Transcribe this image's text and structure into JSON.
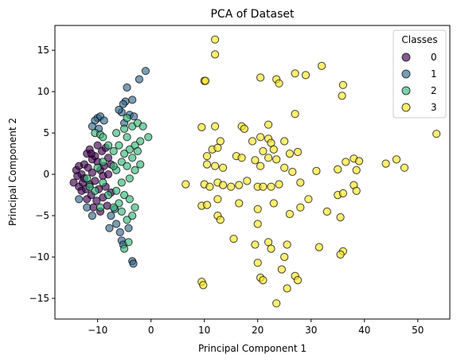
{
  "chart_data": {
    "type": "scatter",
    "title": "PCA of Dataset",
    "xlabel": "Principal Component 1",
    "ylabel": "Principal Component 2",
    "xlim": [
      -18,
      56
    ],
    "ylim": [
      -17.5,
      18
    ],
    "xticks": [
      -10,
      0,
      10,
      20,
      30,
      40,
      50
    ],
    "yticks": [
      -15,
      -10,
      -5,
      0,
      5,
      10,
      15
    ],
    "grid": false,
    "legend": {
      "title": "Classes",
      "placement": "top-right"
    },
    "series": [
      {
        "name": "0",
        "color": "#440154",
        "points": [
          [
            -14.5,
            -1.0
          ],
          [
            -14.0,
            0.5
          ],
          [
            -13.5,
            -1.5
          ],
          [
            -13.5,
            1.0
          ],
          [
            -13.0,
            0.0
          ],
          [
            -13.0,
            -2.0
          ],
          [
            -12.5,
            1.2
          ],
          [
            -12.5,
            -0.5
          ],
          [
            -12.0,
            2.5
          ],
          [
            -12.0,
            -3.0
          ],
          [
            -11.8,
            0.8
          ],
          [
            -11.5,
            -1.2
          ],
          [
            -11.5,
            3.0
          ],
          [
            -11.2,
            -2.5
          ],
          [
            -11.0,
            0.2
          ],
          [
            -11.0,
            1.8
          ],
          [
            -10.8,
            -4.0
          ],
          [
            -10.5,
            2.2
          ],
          [
            -10.5,
            -0.8
          ],
          [
            -10.2,
            -3.2
          ],
          [
            -10.0,
            1.5
          ],
          [
            -10.0,
            3.5
          ],
          [
            -9.8,
            -1.8
          ],
          [
            -9.5,
            0.5
          ],
          [
            -9.5,
            -4.5
          ],
          [
            -9.2,
            2.8
          ],
          [
            -9.0,
            -0.2
          ],
          [
            -9.0,
            -2.8
          ],
          [
            -8.8,
            1.0
          ],
          [
            -8.5,
            3.2
          ],
          [
            -8.5,
            -1.5
          ],
          [
            -8.2,
            -3.8
          ],
          [
            -8.0,
            2.0
          ],
          [
            -8.0,
            0.0
          ],
          [
            -7.5,
            -2.2
          ],
          [
            -7.5,
            1.2
          ],
          [
            -12.8,
            -1.0
          ],
          [
            -13.8,
            -0.2
          ],
          [
            -12.2,
            -1.8
          ],
          [
            -11.2,
            2.5
          ]
        ]
      },
      {
        "name": "1",
        "color": "#31688e",
        "points": [
          [
            -1.0,
            12.5
          ],
          [
            -2.2,
            11.5
          ],
          [
            -4.5,
            10.5
          ],
          [
            -3.5,
            9.0
          ],
          [
            -4.8,
            8.8
          ],
          [
            -5.2,
            8.5
          ],
          [
            -5.5,
            7.5
          ],
          [
            -6.0,
            7.8
          ],
          [
            -4.0,
            7.2
          ],
          [
            -3.2,
            7.0
          ],
          [
            -10.0,
            6.8
          ],
          [
            -9.5,
            7.0
          ],
          [
            -10.5,
            6.5
          ],
          [
            -8.8,
            6.5
          ],
          [
            -5.0,
            6.2
          ],
          [
            -11.0,
            5.8
          ],
          [
            -9.8,
            5.5
          ],
          [
            -13.5,
            -3.0
          ],
          [
            -12.0,
            -4.0
          ],
          [
            -11.0,
            -5.0
          ],
          [
            -7.5,
            -5.0
          ],
          [
            -6.5,
            -6.0
          ],
          [
            -5.8,
            -7.0
          ],
          [
            -5.5,
            -8.0
          ],
          [
            -5.2,
            -8.5
          ],
          [
            -3.5,
            -10.5
          ],
          [
            -3.3,
            -10.8
          ],
          [
            -6.8,
            -4.2
          ],
          [
            -4.2,
            -6.5
          ],
          [
            -7.8,
            -6.5
          ]
        ]
      },
      {
        "name": "2",
        "color": "#35b779",
        "points": [
          [
            -10.5,
            5.0
          ],
          [
            -9.5,
            4.8
          ],
          [
            -5.0,
            5.5
          ],
          [
            -4.5,
            4.5
          ],
          [
            -3.5,
            5.8
          ],
          [
            -2.5,
            6.2
          ],
          [
            -1.5,
            5.8
          ],
          [
            -0.5,
            4.5
          ],
          [
            -2.0,
            4.0
          ],
          [
            -3.0,
            3.5
          ],
          [
            -4.0,
            3.0
          ],
          [
            -5.0,
            2.5
          ],
          [
            -6.0,
            3.5
          ],
          [
            -7.0,
            2.8
          ],
          [
            -5.5,
            1.5
          ],
          [
            -6.5,
            0.5
          ],
          [
            -4.5,
            1.0
          ],
          [
            -3.5,
            2.0
          ],
          [
            -2.5,
            2.8
          ],
          [
            -4.0,
            -0.5
          ],
          [
            -5.5,
            -1.0
          ],
          [
            -6.5,
            -2.0
          ],
          [
            -5.0,
            -2.5
          ],
          [
            -4.0,
            -3.0
          ],
          [
            -6.0,
            -3.5
          ],
          [
            -7.0,
            -4.0
          ],
          [
            -5.5,
            -4.5
          ],
          [
            -4.5,
            -5.5
          ],
          [
            -3.5,
            -5.0
          ],
          [
            -3.0,
            -4.0
          ],
          [
            -5.0,
            -9.0
          ],
          [
            -4.2,
            -8.2
          ],
          [
            -9.0,
            -1.0
          ],
          [
            -8.0,
            -2.5
          ],
          [
            -9.5,
            -4.0
          ],
          [
            -10.5,
            -2.0
          ],
          [
            -11.5,
            -1.5
          ],
          [
            -12.0,
            -0.5
          ],
          [
            -10.0,
            0.8
          ],
          [
            -9.0,
            1.5
          ],
          [
            -8.0,
            3.5
          ],
          [
            -7.0,
            1.0
          ],
          [
            -3.0,
            0.5
          ],
          [
            -2.0,
            1.2
          ],
          [
            -4.5,
            6.8
          ],
          [
            -6.5,
            5.0
          ],
          [
            -9.0,
            4.5
          ]
        ]
      },
      {
        "name": "3",
        "color": "#fde725",
        "points": [
          [
            12.0,
            16.3
          ],
          [
            12.0,
            14.5
          ],
          [
            10.0,
            11.3
          ],
          [
            10.2,
            11.3
          ],
          [
            20.5,
            11.7
          ],
          [
            23.5,
            11.5
          ],
          [
            24.0,
            11.0
          ],
          [
            27.0,
            12.2
          ],
          [
            29.0,
            12.0
          ],
          [
            32.0,
            13.1
          ],
          [
            36.0,
            10.8
          ],
          [
            35.8,
            9.5
          ],
          [
            9.5,
            5.7
          ],
          [
            12.0,
            5.8
          ],
          [
            17.0,
            5.8
          ],
          [
            17.5,
            5.5
          ],
          [
            19.0,
            4.0
          ],
          [
            20.5,
            4.5
          ],
          [
            22.0,
            6.0
          ],
          [
            22.0,
            4.3
          ],
          [
            22.5,
            3.8
          ],
          [
            23.0,
            3.0
          ],
          [
            25.0,
            4.0
          ],
          [
            27.0,
            7.3
          ],
          [
            10.5,
            2.2
          ],
          [
            11.5,
            3.0
          ],
          [
            13.0,
            4.0
          ],
          [
            12.5,
            3.2
          ],
          [
            16.0,
            2.2
          ],
          [
            17.0,
            2.0
          ],
          [
            19.5,
            1.7
          ],
          [
            21.0,
            2.8
          ],
          [
            22.0,
            2.0
          ],
          [
            23.5,
            1.8
          ],
          [
            26.0,
            2.5
          ],
          [
            27.5,
            2.7
          ],
          [
            10.5,
            1.2
          ],
          [
            12.0,
            1.0
          ],
          [
            13.5,
            0.8
          ],
          [
            20.5,
            1.0
          ],
          [
            25.0,
            0.8
          ],
          [
            26.5,
            0.3
          ],
          [
            31.0,
            0.4
          ],
          [
            35.0,
            0.6
          ],
          [
            36.5,
            1.5
          ],
          [
            38.0,
            1.9
          ],
          [
            39.0,
            1.6
          ],
          [
            38.5,
            0.5
          ],
          [
            44.0,
            1.3
          ],
          [
            46.0,
            1.8
          ],
          [
            47.5,
            0.8
          ],
          [
            53.5,
            4.9
          ],
          [
            6.5,
            -1.2
          ],
          [
            10.0,
            -1.2
          ],
          [
            11.0,
            -1.5
          ],
          [
            12.5,
            -1.0
          ],
          [
            13.5,
            -1.3
          ],
          [
            15.0,
            -1.5
          ],
          [
            16.5,
            -1.3
          ],
          [
            18.0,
            -0.8
          ],
          [
            20.0,
            -1.5
          ],
          [
            21.0,
            -1.5
          ],
          [
            22.5,
            -1.5
          ],
          [
            24.0,
            -1.2
          ],
          [
            28.0,
            -1.0
          ],
          [
            29.5,
            -3.0
          ],
          [
            28.0,
            -4.0
          ],
          [
            9.5,
            -3.8
          ],
          [
            10.5,
            -3.7
          ],
          [
            12.5,
            -3.0
          ],
          [
            12.5,
            -5.0
          ],
          [
            13.0,
            -5.5
          ],
          [
            16.5,
            -3.5
          ],
          [
            20.0,
            -4.2
          ],
          [
            23.0,
            -3.5
          ],
          [
            26.0,
            -4.8
          ],
          [
            33.0,
            -4.5
          ],
          [
            35.0,
            -2.5
          ],
          [
            36.0,
            -2.3
          ],
          [
            35.5,
            -5.2
          ],
          [
            38.0,
            -1.3
          ],
          [
            38.5,
            -2.0
          ],
          [
            15.5,
            -7.8
          ],
          [
            20.0,
            -6.0
          ],
          [
            22.0,
            -8.2
          ],
          [
            22.5,
            -9.0
          ],
          [
            25.0,
            -10.0
          ],
          [
            25.5,
            -8.5
          ],
          [
            31.5,
            -8.8
          ],
          [
            36.0,
            -9.3
          ],
          [
            35.5,
            -9.7
          ],
          [
            20.0,
            -10.7
          ],
          [
            9.5,
            -13.0
          ],
          [
            9.8,
            -13.4
          ],
          [
            20.5,
            -12.5
          ],
          [
            21.0,
            -12.8
          ],
          [
            24.5,
            -11.5
          ],
          [
            27.0,
            -12.3
          ],
          [
            27.5,
            -12.8
          ],
          [
            25.5,
            -13.8
          ],
          [
            23.5,
            -15.6
          ],
          [
            19.5,
            -8.5
          ]
        ]
      }
    ]
  }
}
